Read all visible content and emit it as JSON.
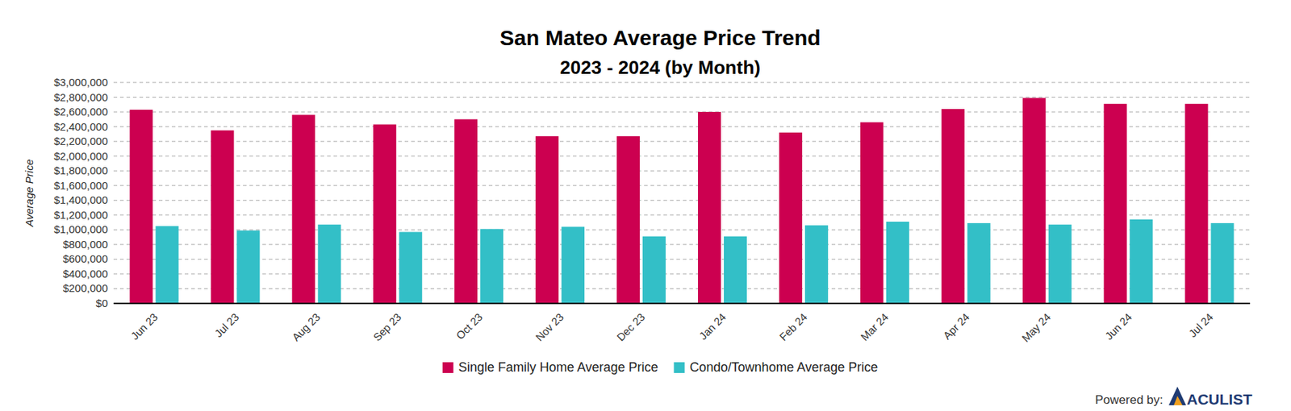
{
  "chart_data": {
    "type": "bar",
    "title": "San Mateo Average Price Trend",
    "subtitle": "2023 - 2024 (by Month)",
    "y_label": "Average Price",
    "categories": [
      "Jun 23",
      "Jul 23",
      "Aug 23",
      "Sep 23",
      "Oct 23",
      "Nov 23",
      "Dec 23",
      "Jan 24",
      "Feb 24",
      "Mar 24",
      "Apr 24",
      "May 24",
      "Jun 24",
      "Jul 24"
    ],
    "series": [
      {
        "name": "Single Family Home Average Price",
        "color": "#cc0050",
        "values": [
          2630000,
          2350000,
          2560000,
          2430000,
          2500000,
          2270000,
          2270000,
          2600000,
          2320000,
          2460000,
          2640000,
          2790000,
          2710000,
          2710000
        ]
      },
      {
        "name": "Condo/Townhome Average Price",
        "color": "#33bfc7",
        "values": [
          1050000,
          990000,
          1070000,
          970000,
          1010000,
          1040000,
          910000,
          910000,
          1060000,
          1110000,
          1090000,
          1070000,
          1140000,
          1090000
        ]
      }
    ],
    "ylim": [
      0,
      3000000
    ],
    "yticks": [
      {
        "value": 0,
        "label": "$0"
      },
      {
        "value": 200000,
        "label": "$200,000"
      },
      {
        "value": 400000,
        "label": "$400,000"
      },
      {
        "value": 600000,
        "label": "$600,000"
      },
      {
        "value": 800000,
        "label": "$800,000"
      },
      {
        "value": 1000000,
        "label": "$1,000,000"
      },
      {
        "value": 1200000,
        "label": "$1,200,000"
      },
      {
        "value": 1400000,
        "label": "$1,400,000"
      },
      {
        "value": 1600000,
        "label": "$1,600,000"
      },
      {
        "value": 1800000,
        "label": "$1,800,000"
      },
      {
        "value": 2000000,
        "label": "$2,000,000"
      },
      {
        "value": 2200000,
        "label": "$2,200,000"
      },
      {
        "value": 2400000,
        "label": "$2,400,000"
      },
      {
        "value": 2600000,
        "label": "$2,600,000"
      },
      {
        "value": 2800000,
        "label": "$2,800,000"
      },
      {
        "value": 3000000,
        "label": "$3,000,000"
      }
    ],
    "grid": true,
    "legend": "bottom",
    "credit": "Powered by:",
    "brand": "ACULIST"
  }
}
